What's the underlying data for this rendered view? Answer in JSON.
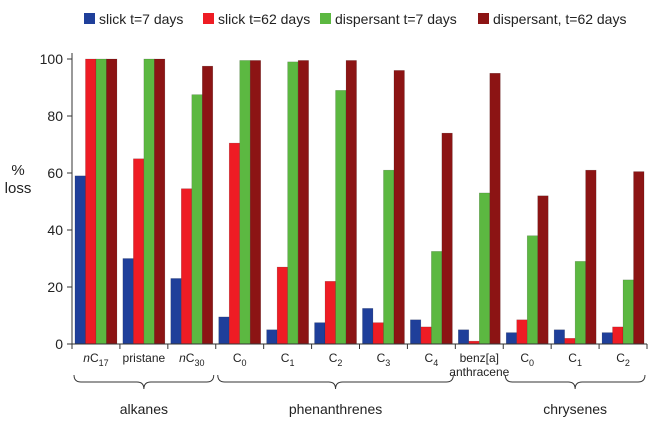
{
  "chart_data": {
    "type": "bar",
    "ylabel": [
      "%",
      "loss"
    ],
    "ylim": [
      0,
      100
    ],
    "yticks": [
      "0",
      "20",
      "40",
      "60",
      "80",
      "100"
    ],
    "grid": false,
    "legend_placement": "top",
    "categories": [
      {
        "base": "nC",
        "sub": "17",
        "italic_prefix": "n"
      },
      {
        "base": "pristane"
      },
      {
        "base": "nC",
        "sub": "30",
        "italic_prefix": "n"
      },
      {
        "base": "C",
        "sub": "0"
      },
      {
        "base": "C",
        "sub": "1"
      },
      {
        "base": "C",
        "sub": "2"
      },
      {
        "base": "C",
        "sub": "3"
      },
      {
        "base": "C",
        "sub": "4"
      },
      {
        "base": "benz[a]",
        "line2": "anthracene"
      },
      {
        "base": "C",
        "sub": "0"
      },
      {
        "base": "C",
        "sub": "1"
      },
      {
        "base": "C",
        "sub": "2"
      }
    ],
    "groups": [
      {
        "label": "alkanes",
        "from": 0,
        "to": 2
      },
      {
        "label": "phenanthrenes",
        "from": 3,
        "to": 7
      },
      {
        "label": "chrysenes",
        "from": 9,
        "to": 11
      }
    ],
    "series": [
      {
        "name": "slick t=7 days",
        "color": "#1f3f9a",
        "values": [
          59,
          30,
          23,
          9.5,
          5,
          7.5,
          12.5,
          8.5,
          5,
          4,
          5,
          4
        ]
      },
      {
        "name": "slick t=62 days",
        "color": "#ee1c24",
        "values": [
          100,
          65,
          54.5,
          70.5,
          27,
          22,
          7.5,
          6,
          1,
          8.5,
          2,
          6
        ]
      },
      {
        "name": "dispersant t=7 days",
        "color": "#5cb841",
        "values": [
          100,
          100,
          87.5,
          99.5,
          99,
          89,
          61,
          32.5,
          53,
          38,
          29,
          22.5
        ]
      },
      {
        "name": "dispersant, t=62 days",
        "color": "#8c1414",
        "values": [
          100,
          100,
          97.5,
          99.5,
          99.5,
          99.5,
          96,
          74,
          95,
          52,
          61,
          60.5
        ]
      }
    ]
  }
}
